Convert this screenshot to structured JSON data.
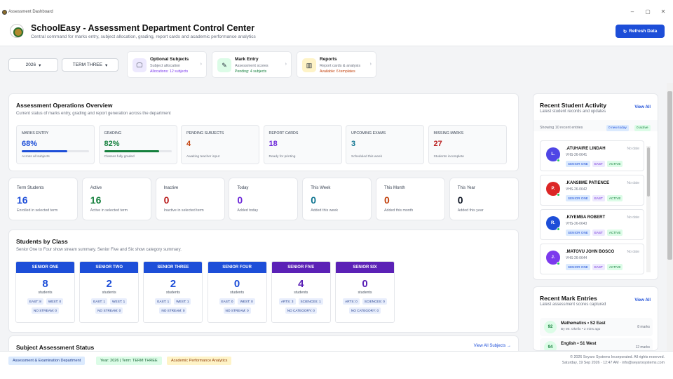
{
  "window": {
    "title": "Assessment Dashboard",
    "minimize": "–",
    "maximize": "▢",
    "close": "✕"
  },
  "header": {
    "title": "SchoolEasy - Assessment Department Control Center",
    "subtitle": "Central command for marks entry, subject allocation, grading, report cards and academic performance analytics",
    "refresh_icon": "↻",
    "refresh_label": "Refresh Data"
  },
  "filters": {
    "year": "2026",
    "term": "TERM THREE",
    "caret": "▾"
  },
  "quick": [
    {
      "title": "Optional Subjects",
      "sub": "Subject allocation",
      "note": "Allocations: 12 subjects",
      "icon": "🖵",
      "color": "#7c3aed"
    },
    {
      "title": "Mark Entry",
      "sub": "Assessment scores",
      "note": "Pending: 4 subjects",
      "icon": "✎",
      "color": "#15803d"
    },
    {
      "title": "Reports",
      "sub": "Report cards & analysis",
      "note": "Available: 6 templates",
      "icon": "▥",
      "color": "#c2410c"
    }
  ],
  "overview": {
    "title": "Assessment Operations Overview",
    "subtitle": "Current status of marks entry, grading and report generation across the department",
    "kpis": [
      {
        "label": "MARKS ENTRY",
        "value": "68%",
        "hint": "Across all subjects",
        "progress": 0.68,
        "color": "#1d4ed8"
      },
      {
        "label": "GRADING",
        "value": "82%",
        "hint": "Classes fully graded",
        "progress": 0.82,
        "color": "#15803d"
      },
      {
        "label": "PENDING SUBJECTS",
        "value": "4",
        "hint": "Awaiting teacher input",
        "color": "#c2410c"
      },
      {
        "label": "REPORT CARDS",
        "value": "18",
        "hint": "Ready for printing",
        "color": "#6d28d9"
      },
      {
        "label": "UPCOMING EXAMS",
        "value": "3",
        "hint": "Scheduled this week",
        "color": "#0e7490"
      },
      {
        "label": "MISSING MARKS",
        "value": "27",
        "hint": "Students incomplete",
        "color": "#b91c1c"
      }
    ]
  },
  "stats": [
    {
      "label": "Term Students",
      "value": "16",
      "hint": "Enrolled in selected term",
      "color": "#1d4ed8"
    },
    {
      "label": "Active",
      "value": "16",
      "hint": "Active in selected term",
      "color": "#15803d"
    },
    {
      "label": "Inactive",
      "value": "0",
      "hint": "Inactive in selected term",
      "color": "#b91c1c"
    },
    {
      "label": "Today",
      "value": "0",
      "hint": "Added today",
      "color": "#6d28d9"
    },
    {
      "label": "This Week",
      "value": "0",
      "hint": "Added this week",
      "color": "#0e7490"
    },
    {
      "label": "This Month",
      "value": "0",
      "hint": "Added this month",
      "color": "#c2410c"
    },
    {
      "label": "This Year",
      "value": "0",
      "hint": "Added this year",
      "color": "#111827"
    }
  ],
  "classes": {
    "title": "Students by Class",
    "subtitle": "Senior One to Four show stream summary. Senior Five and Six show category summary.",
    "items": [
      {
        "name": "SENIOR ONE",
        "value": "8",
        "unit": "students",
        "t1": "EAST: 8",
        "t2": "WEST: 0",
        "t3": "NO STREAM: 0",
        "color": "#1d4ed8"
      },
      {
        "name": "SENIOR TWO",
        "value": "2",
        "unit": "students",
        "t1": "EAST: 1",
        "t2": "WEST: 1",
        "t3": "NO STREAM: 0",
        "color": "#1d4ed8"
      },
      {
        "name": "SENIOR THREE",
        "value": "2",
        "unit": "students",
        "t1": "EAST: 1",
        "t2": "WEST: 1",
        "t3": "NO STREAM: 0",
        "color": "#1d4ed8"
      },
      {
        "name": "SENIOR FOUR",
        "value": "0",
        "unit": "students",
        "t1": "EAST: 0",
        "t2": "WEST: 0",
        "t3": "NO STREAM: 0",
        "color": "#1d4ed8"
      },
      {
        "name": "SENIOR FIVE",
        "value": "4",
        "unit": "students",
        "t1": "ARTS: 3",
        "t2": "SCIENCES: 1",
        "t3": "NO CATEGORY: 0",
        "color": "#5b21b6"
      },
      {
        "name": "SENIOR SIX",
        "value": "0",
        "unit": "students",
        "t1": "ARTS: 0",
        "t2": "SCIENCES: 0",
        "t3": "NO CATEGORY: 0",
        "color": "#5b21b6"
      }
    ]
  },
  "subject_status": {
    "title": "Subject Assessment Status",
    "link": "View All Subjects →"
  },
  "activity": {
    "title": "Recent Student Activity",
    "subtitle": "Latest student records and updates",
    "view_all": "View All",
    "showing": "Showing 10 recent entries",
    "badge_new": "0 new today",
    "badge_active": "0 active",
    "items": [
      {
        "initial": "L.",
        "name": ".ATUHAIRE LINDAH",
        "id": "VHS-26-0641",
        "date": "No date",
        "cls": "SENIOR ONE",
        "stream": "EAST",
        "status": "ACTIVE",
        "color": "#4f46e5"
      },
      {
        "initial": "P.",
        "name": ".KANSIIME PATIENCE",
        "id": "VHS-26-0642",
        "date": "No date",
        "cls": "SENIOR ONE",
        "stream": "EAST",
        "status": "ACTIVE",
        "color": "#dc2626"
      },
      {
        "initial": "R.",
        "name": ".KIYEMBA ROBERT",
        "id": "VHS-26-0643",
        "date": "No date",
        "cls": "SENIOR ONE",
        "stream": "EAST",
        "status": "ACTIVE",
        "color": "#1d4ed8"
      },
      {
        "initial": "J.",
        "name": ".MATOVU JOHN BOSCO",
        "id": "VHS-26-0644",
        "date": "No date",
        "cls": "SENIOR ONE",
        "stream": "EAST",
        "status": "ACTIVE",
        "color": "#7c3aed"
      }
    ]
  },
  "marks": {
    "title": "Recent Mark Entries",
    "subtitle": "Latest assessment scores captured",
    "view_all": "View All",
    "items": [
      {
        "score": "92",
        "subject": "Mathematics • S2 East",
        "by": "By Mr. Okello • 2 mins ago",
        "count": "8 marks"
      },
      {
        "score": "94",
        "subject": "English • S1 West",
        "by": "",
        "count": "12 marks"
      }
    ]
  },
  "footer": {
    "b1": "Assessment & Examination Department",
    "b2": "Year: 2026 | Term: TERM THREE",
    "b3": "Academic Performance Analytics",
    "copy": "© 2026 Seyaro Systems Incorporated. All rights reserved.",
    "date": "Saturday, 19 Sep 2026 · 12:47 AM · info@seyarosystems.com"
  }
}
